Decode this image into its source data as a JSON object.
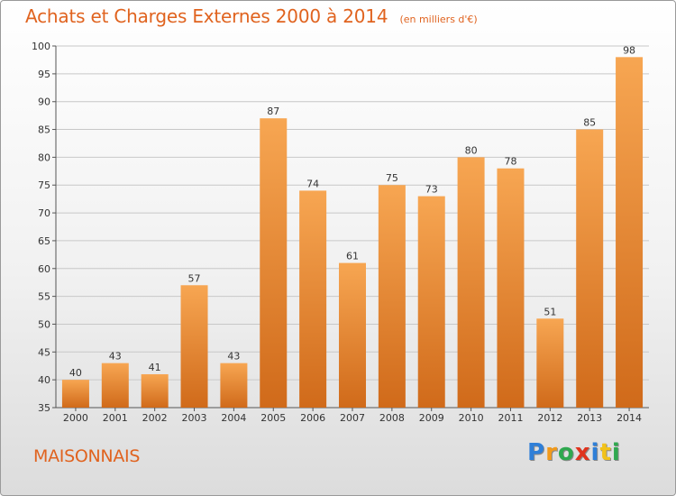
{
  "title": "Achats et Charges Externes 2000 à 2014",
  "unit_label": "(en milliers d'€)",
  "commune": "MAISONNAIS",
  "logo": {
    "letters": [
      {
        "ch": "P",
        "color": "#2f7fd8"
      },
      {
        "ch": "r",
        "color": "#f29a1a"
      },
      {
        "ch": "o",
        "color": "#2fa84f"
      },
      {
        "ch": "x",
        "color": "#e0341e"
      },
      {
        "ch": "i",
        "color": "#2f7fd8"
      },
      {
        "ch": "t",
        "color": "#f2c21a"
      },
      {
        "ch": "i",
        "color": "#2fa84f"
      }
    ]
  },
  "colors": {
    "accent": "#e0631f",
    "bar_light": "#f7a652",
    "bar_dark": "#d06a1a",
    "grid": "#c8c8c8",
    "axis_text": "#333333"
  },
  "chart_data": {
    "type": "bar",
    "title": "Achats et Charges Externes 2000 à 2014",
    "xlabel": "",
    "ylabel": "",
    "categories": [
      "2000",
      "2001",
      "2002",
      "2003",
      "2004",
      "2005",
      "2006",
      "2007",
      "2008",
      "2009",
      "2010",
      "2011",
      "2012",
      "2013",
      "2014"
    ],
    "values": [
      40,
      43,
      41,
      57,
      43,
      87,
      74,
      61,
      75,
      73,
      80,
      78,
      51,
      85,
      98
    ],
    "ylim": [
      35,
      100
    ],
    "yticks": [
      35,
      40,
      45,
      50,
      55,
      60,
      65,
      70,
      75,
      80,
      85,
      90,
      95,
      100
    ],
    "grid": true,
    "data_labels": true
  }
}
